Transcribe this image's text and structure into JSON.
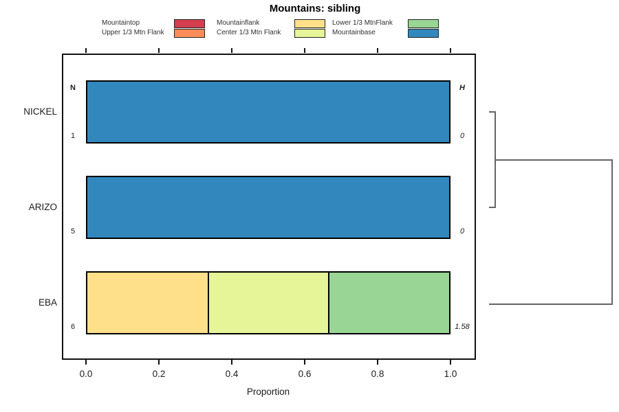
{
  "title": "Mountains: sibling",
  "columns": {
    "n_header": "N",
    "h_header": "H"
  },
  "legend": {
    "items": [
      {
        "label": "Mountaintop",
        "color": "#D53E4F"
      },
      {
        "label": "Upper 1/3 Mtn Flank",
        "color": "#FC8D59"
      },
      {
        "label": "Mountainflank",
        "color": "#FEE08B"
      },
      {
        "label": "Center 1/3 Mtn Flank",
        "color": "#E6F598"
      },
      {
        "label": "Lower 1/3 MtnFlank",
        "color": "#99D594"
      },
      {
        "label": "Mountainbase",
        "color": "#3288BD"
      }
    ]
  },
  "chart_data": {
    "type": "bar",
    "orientation": "horizontal",
    "stacked": true,
    "title": "Mountains: sibling",
    "xlabel": "Proportion",
    "xlim": [
      0,
      1
    ],
    "xticks": [
      0.0,
      0.2,
      0.4,
      0.6,
      0.8,
      1.0
    ],
    "xtick_labels": [
      "0.0",
      "0.2",
      "0.4",
      "0.6",
      "0.8",
      "1.0"
    ],
    "grid": false,
    "legend_position": "top",
    "categories": [
      "NICKEL",
      "ARIZO",
      "EBA"
    ],
    "rows": [
      {
        "label": "NICKEL",
        "n": "1",
        "h": "0",
        "segments": [
          {
            "name": "Mountainbase",
            "color": "#3288BD",
            "value": 1.0
          }
        ]
      },
      {
        "label": "ARIZO",
        "n": "5",
        "h": "0",
        "segments": [
          {
            "name": "Mountainbase",
            "color": "#3288BD",
            "value": 1.0
          }
        ]
      },
      {
        "label": "EBA",
        "n": "6",
        "h": "1.58",
        "segments": [
          {
            "name": "Mountainflank",
            "color": "#FEE08B",
            "value": 0.333
          },
          {
            "name": "Center 1/3 Mtn Flank",
            "color": "#E6F598",
            "value": 0.333
          },
          {
            "name": "Lower 1/3 MtnFlank",
            "color": "#99D594",
            "value": 0.334
          }
        ]
      }
    ],
    "series": [
      {
        "name": "Mountaintop",
        "color": "#D53E4F",
        "values": [
          0,
          0,
          0
        ]
      },
      {
        "name": "Upper 1/3 Mtn Flank",
        "color": "#FC8D59",
        "values": [
          0,
          0,
          0
        ]
      },
      {
        "name": "Mountainflank",
        "color": "#FEE08B",
        "values": [
          0,
          0,
          0.333
        ]
      },
      {
        "name": "Center 1/3 Mtn Flank",
        "color": "#E6F598",
        "values": [
          0,
          0,
          0.333
        ]
      },
      {
        "name": "Lower 1/3 MtnFlank",
        "color": "#99D594",
        "values": [
          0,
          0,
          0.334
        ]
      },
      {
        "name": "Mountainbase",
        "color": "#3288BD",
        "values": [
          1,
          1,
          0
        ]
      }
    ],
    "dendrogram": {
      "leaves": [
        "NICKEL",
        "ARIZO",
        "EBA"
      ],
      "merges": [
        {
          "members": [
            "NICKEL",
            "ARIZO"
          ],
          "height": 0
        },
        {
          "members": [
            "NICKEL+ARIZO",
            "EBA"
          ],
          "height": 1.58
        }
      ]
    }
  }
}
